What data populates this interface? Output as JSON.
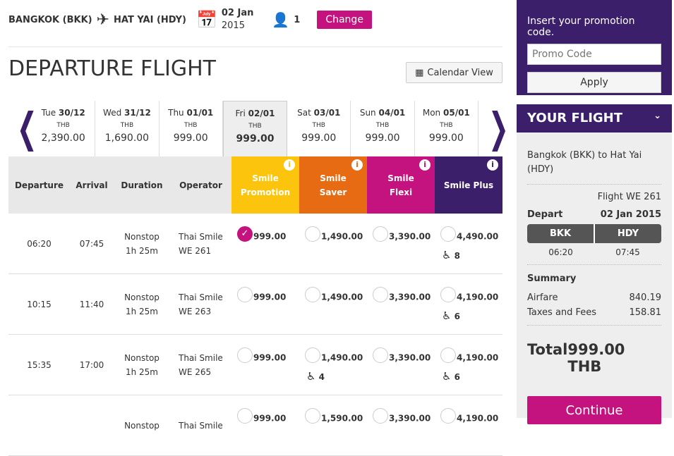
{
  "search": {
    "origin": "BANGKOK (BKK)",
    "destination": "HAT YAI (HDY)",
    "date": "02 Jan",
    "year": "2015",
    "passengers": "1",
    "change_label": "Change"
  },
  "title": "DEPARTURE FLIGHT",
  "calendar_view": "Calendar View",
  "days": [
    {
      "d": "Tue",
      "n": "30/12",
      "cur": "THB",
      "price": "2,390.00"
    },
    {
      "d": "Wed",
      "n": "31/12",
      "cur": "THB",
      "price": "1,690.00"
    },
    {
      "d": "Thu",
      "n": "01/01",
      "cur": "THB",
      "price": "999.00"
    },
    {
      "d": "Fri",
      "n": "02/01",
      "cur": "THB",
      "price": "999.00",
      "selected": true
    },
    {
      "d": "Sat",
      "n": "03/01",
      "cur": "THB",
      "price": "999.00"
    },
    {
      "d": "Sun",
      "n": "04/01",
      "cur": "THB",
      "price": "999.00"
    },
    {
      "d": "Mon",
      "n": "05/01",
      "cur": "THB",
      "price": "999.00"
    }
  ],
  "columns": {
    "departure": "Departure",
    "arrival": "Arrival",
    "duration": "Duration",
    "operator": "Operator"
  },
  "fares": [
    {
      "name": "Smile Promotion",
      "color": "#fcc40c"
    },
    {
      "name": "Smile Saver",
      "color": "#e66b12"
    },
    {
      "name": "Smile Flexi",
      "color": "#c4127f"
    },
    {
      "name": "Smile Plus",
      "color": "#3b1f6b"
    }
  ],
  "flights": [
    {
      "dep": "06:20",
      "arr": "07:45",
      "stops": "Nonstop",
      "dur": "1h 25m",
      "op": "Thai Smile",
      "no": "WE 261",
      "prices": [
        "999.00",
        "1,490.00",
        "3,390.00",
        "4,490.00"
      ],
      "seats": [
        "",
        "",
        "",
        "8"
      ],
      "selected": 0
    },
    {
      "dep": "10:15",
      "arr": "11:40",
      "stops": "Nonstop",
      "dur": "1h 25m",
      "op": "Thai Smile",
      "no": "WE 263",
      "prices": [
        "999.00",
        "1,490.00",
        "3,390.00",
        "4,190.00"
      ],
      "seats": [
        "",
        "",
        "",
        "6"
      ]
    },
    {
      "dep": "15:35",
      "arr": "17:00",
      "stops": "Nonstop",
      "dur": "1h 25m",
      "op": "Thai Smile",
      "no": "WE 265",
      "prices": [
        "999.00",
        "1,490.00",
        "3,390.00",
        "4,190.00"
      ],
      "seats": [
        "",
        "4",
        "",
        "6"
      ]
    },
    {
      "dep": "",
      "arr": "",
      "stops": "Nonstop",
      "dur": "",
      "op": "Thai Smile",
      "no": "",
      "prices": [
        "999.00",
        "1,590.00",
        "3,390.00",
        "4,190.00"
      ],
      "seats": [
        "",
        "",
        "",
        ""
      ]
    }
  ],
  "promo": {
    "label": "Insert your promotion code.",
    "placeholder": "Promo Code",
    "apply": "Apply"
  },
  "your_flight": {
    "title": "YOUR FLIGHT",
    "route": "Bangkok (BKK) to Hat Yai (HDY)",
    "flight": "Flight WE 261",
    "depart": "Depart",
    "date": "02 Jan 2015",
    "from": "BKK",
    "to": "HDY",
    "dep_time": "06:20",
    "arr_time": "07:45",
    "summary": "Summary",
    "airfare_label": "Airfare",
    "airfare": "840.19",
    "taxes_label": "Taxes and Fees",
    "taxes": "158.81",
    "total_label": "Total",
    "total": "999.00 THB",
    "continue": "Continue"
  }
}
